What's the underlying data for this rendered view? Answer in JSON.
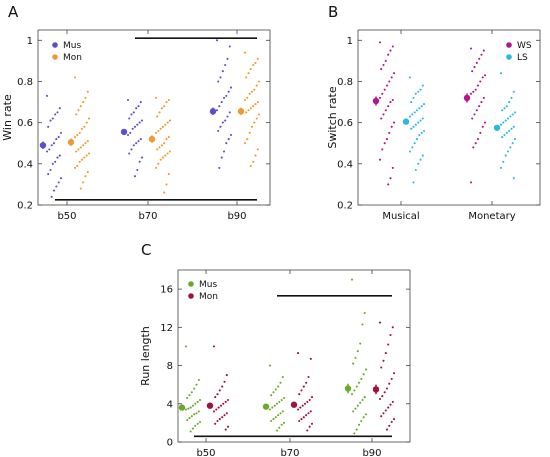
{
  "chart_data": [
    {
      "panel": "A",
      "type": "scatter",
      "ylabel": "Win rate",
      "xlabel": "",
      "categories": [
        "b50",
        "b70",
        "b90"
      ],
      "ylim": [
        0.2,
        1.05
      ],
      "yticks": [
        0.2,
        0.4,
        0.6,
        0.8,
        1
      ],
      "ytick_labels": [
        "0.2",
        "0.4",
        "0.6",
        "0.8",
        "1"
      ],
      "legend_position": "top-left",
      "series": [
        {
          "name": "Mus",
          "color": "#5a4fcf",
          "means": [
            0.49,
            0.555,
            0.655
          ],
          "errors": [
            0.018,
            0.012,
            0.018
          ],
          "points": [
            [
              0.73,
              0.67,
              0.65,
              0.64,
              0.62,
              0.61,
              0.58,
              0.55,
              0.53,
              0.52,
              0.5,
              0.49,
              0.47,
              0.46,
              0.44,
              0.43,
              0.41,
              0.4,
              0.37,
              0.35,
              0.33,
              0.31,
              0.29,
              0.27,
              0.24
            ],
            [
              0.71,
              0.7,
              0.68,
              0.67,
              0.65,
              0.64,
              0.62,
              0.61,
              0.6,
              0.59,
              0.58,
              0.57,
              0.55,
              0.54,
              0.52,
              0.51,
              0.5,
              0.49,
              0.47,
              0.45,
              0.43,
              0.41,
              0.37,
              0.34
            ],
            [
              1.0,
              0.97,
              0.91,
              0.88,
              0.85,
              0.82,
              0.8,
              0.77,
              0.75,
              0.73,
              0.72,
              0.7,
              0.68,
              0.66,
              0.65,
              0.63,
              0.61,
              0.6,
              0.58,
              0.56,
              0.54,
              0.52,
              0.5,
              0.46,
              0.43,
              0.38
            ]
          ]
        },
        {
          "name": "Mon",
          "color": "#f09a2e",
          "means": [
            0.505,
            0.52,
            0.655
          ],
          "errors": [
            0.018,
            0.018,
            0.018
          ],
          "points": [
            [
              0.82,
              0.75,
              0.72,
              0.7,
              0.68,
              0.66,
              0.64,
              0.62,
              0.6,
              0.58,
              0.57,
              0.55,
              0.54,
              0.53,
              0.51,
              0.5,
              0.49,
              0.48,
              0.47,
              0.46,
              0.45,
              0.44,
              0.43,
              0.42,
              0.41,
              0.39,
              0.38,
              0.36,
              0.34,
              0.31,
              0.28
            ],
            [
              0.72,
              0.71,
              0.7,
              0.68,
              0.67,
              0.65,
              0.63,
              0.61,
              0.6,
              0.59,
              0.58,
              0.57,
              0.56,
              0.55,
              0.53,
              0.52,
              0.5,
              0.49,
              0.48,
              0.47,
              0.46,
              0.45,
              0.44,
              0.43,
              0.42,
              0.4,
              0.38,
              0.35,
              0.3,
              0.26
            ],
            [
              0.94,
              0.91,
              0.89,
              0.88,
              0.86,
              0.84,
              0.82,
              0.8,
              0.78,
              0.76,
              0.75,
              0.74,
              0.72,
              0.71,
              0.7,
              0.69,
              0.68,
              0.67,
              0.66,
              0.65,
              0.64,
              0.62,
              0.6,
              0.58,
              0.55,
              0.52,
              0.5,
              0.47,
              0.44,
              0.41,
              0.39
            ]
          ]
        }
      ],
      "significance_bars": [
        {
          "from_category": "b70",
          "to_category": "b90",
          "y": 1.01
        },
        {
          "from_category": "b50",
          "to_category": "b90",
          "y": 0.225
        }
      ]
    },
    {
      "panel": "B",
      "type": "scatter",
      "ylabel": "Switch rate",
      "xlabel": "",
      "categories": [
        "Musical",
        "Monetary"
      ],
      "ylim": [
        0.2,
        1.05
      ],
      "yticks": [
        0.2,
        0.4,
        0.6,
        0.8,
        1
      ],
      "ytick_labels": [
        "0.2",
        "0.4",
        "0.6",
        "0.8",
        "1"
      ],
      "legend_position": "top-right",
      "series": [
        {
          "name": "WS",
          "color": "#b5148f",
          "means": [
            0.705,
            0.72
          ],
          "errors": [
            0.022,
            0.022
          ],
          "points": [
            [
              0.99,
              0.97,
              0.95,
              0.93,
              0.9,
              0.88,
              0.86,
              0.84,
              0.82,
              0.8,
              0.78,
              0.76,
              0.74,
              0.72,
              0.71,
              0.7,
              0.68,
              0.66,
              0.64,
              0.62,
              0.6,
              0.58,
              0.55,
              0.52,
              0.5,
              0.47,
              0.42,
              0.38,
              0.33,
              0.3
            ],
            [
              0.96,
              0.95,
              0.93,
              0.91,
              0.89,
              0.87,
              0.85,
              0.83,
              0.82,
              0.8,
              0.78,
              0.76,
              0.75,
              0.74,
              0.72,
              0.7,
              0.68,
              0.66,
              0.64,
              0.62,
              0.6,
              0.58,
              0.55,
              0.52,
              0.5,
              0.48,
              0.31
            ]
          ]
        },
        {
          "name": "LS",
          "color": "#2bb9dd",
          "means": [
            0.605,
            0.575
          ],
          "errors": [
            0.014,
            0.014
          ],
          "points": [
            [
              0.82,
              0.78,
              0.76,
              0.75,
              0.74,
              0.72,
              0.7,
              0.69,
              0.68,
              0.67,
              0.66,
              0.65,
              0.64,
              0.63,
              0.62,
              0.61,
              0.6,
              0.59,
              0.58,
              0.57,
              0.56,
              0.55,
              0.54,
              0.52,
              0.5,
              0.48,
              0.46,
              0.44,
              0.42,
              0.4,
              0.37,
              0.31
            ],
            [
              0.84,
              0.75,
              0.72,
              0.7,
              0.68,
              0.67,
              0.66,
              0.65,
              0.64,
              0.63,
              0.62,
              0.61,
              0.6,
              0.59,
              0.58,
              0.57,
              0.56,
              0.55,
              0.54,
              0.53,
              0.52,
              0.5,
              0.48,
              0.46,
              0.44,
              0.41,
              0.38,
              0.33
            ]
          ]
        }
      ],
      "significance_bars": []
    },
    {
      "panel": "C",
      "type": "scatter",
      "ylabel": "Run length",
      "xlabel": "",
      "categories": [
        "b50",
        "b70",
        "b90"
      ],
      "ylim": [
        0,
        18
      ],
      "yticks": [
        0,
        4,
        8,
        12,
        16
      ],
      "ytick_labels": [
        "0",
        "4",
        "8",
        "12",
        "16"
      ],
      "legend_position": "top-left",
      "series": [
        {
          "name": "Mus",
          "color": "#6aaa28",
          "means": [
            3.6,
            3.7,
            5.6
          ],
          "errors": [
            0.25,
            0.25,
            0.5
          ],
          "points": [
            [
              10.0,
              6.5,
              6.0,
              5.6,
              5.2,
              4.9,
              4.6,
              4.4,
              4.2,
              4.0,
              3.8,
              3.6,
              3.5,
              3.4,
              3.2,
              3.0,
              2.9,
              2.7,
              2.5,
              2.3,
              2.1,
              1.9,
              1.7,
              1.4,
              1.1
            ],
            [
              8.0,
              6.8,
              6.2,
              5.8,
              5.5,
              5.2,
              4.9,
              4.6,
              4.4,
              4.2,
              4.0,
              3.8,
              3.6,
              3.4,
              3.2,
              3.0,
              2.8,
              2.6,
              2.4,
              2.2,
              2.0,
              1.8,
              1.5,
              1.2
            ],
            [
              17.0,
              13.5,
              12.3,
              10.3,
              9.5,
              8.8,
              8.2,
              7.6,
              7.1,
              6.6,
              6.2,
              5.8,
              5.4,
              5.0,
              4.7,
              4.4,
              4.1,
              3.8,
              3.5,
              3.2,
              2.9,
              2.6,
              2.2,
              1.8,
              1.3,
              0.9
            ]
          ]
        },
        {
          "name": "Mon",
          "color": "#a0123a",
          "means": [
            3.8,
            3.9,
            5.5
          ],
          "errors": [
            0.25,
            0.25,
            0.5
          ],
          "points": [
            [
              10.0,
              7.0,
              6.3,
              5.8,
              5.4,
              5.0,
              4.7,
              4.4,
              4.2,
              4.0,
              3.8,
              3.6,
              3.4,
              3.2,
              3.0,
              2.8,
              2.6,
              2.4,
              2.2,
              1.9,
              1.6,
              1.3
            ],
            [
              9.3,
              8.7,
              6.8,
              6.2,
              5.8,
              5.4,
              5.0,
              4.7,
              4.4,
              4.2,
              4.0,
              3.8,
              3.6,
              3.4,
              3.2,
              3.0,
              2.8,
              2.6,
              2.4,
              2.2,
              1.9,
              1.6,
              1.2
            ],
            [
              12.5,
              12.0,
              11.2,
              10.2,
              9.3,
              8.5,
              7.8,
              7.2,
              6.6,
              6.1,
              5.6,
              5.2,
              4.8,
              4.5,
              4.2,
              3.9,
              3.6,
              3.3,
              3.0,
              2.7,
              2.4,
              2.1,
              1.7,
              1.3
            ]
          ]
        }
      ],
      "significance_bars": [
        {
          "from_category": "b70",
          "to_category": "b90",
          "y": 15.3
        },
        {
          "from_category": "b50",
          "to_category": "b90",
          "y": 0.6
        }
      ]
    }
  ]
}
